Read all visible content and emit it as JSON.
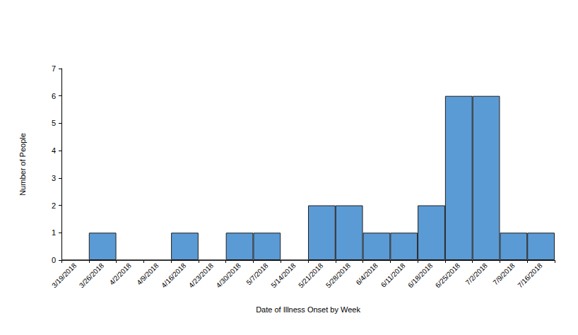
{
  "chart_data": {
    "type": "bar",
    "x_label": "Date of Illness Onset by Week",
    "y_label": "Number of People",
    "categories": [
      "3/19/2018",
      "3/26/2018",
      "4/2/2018",
      "4/9/2018",
      "4/16/2018",
      "4/23/2018",
      "4/30/2018",
      "5/7/2018",
      "5/14/2018",
      "5/21/2018",
      "5/28/2018",
      "6/4/2018",
      "6/11/2018",
      "6/18/2018",
      "6/25/2018",
      "7/2/2018",
      "7/9/2018",
      "7/16/2018"
    ],
    "values": [
      0,
      1,
      0,
      0,
      1,
      0,
      1,
      1,
      0,
      2,
      2,
      1,
      1,
      2,
      6,
      6,
      1,
      1
    ],
    "color": "#5b9bd5",
    "ylim": [
      0,
      7
    ],
    "yticks": [
      0,
      1,
      2,
      3,
      4,
      5,
      6,
      7
    ],
    "grid": false
  }
}
